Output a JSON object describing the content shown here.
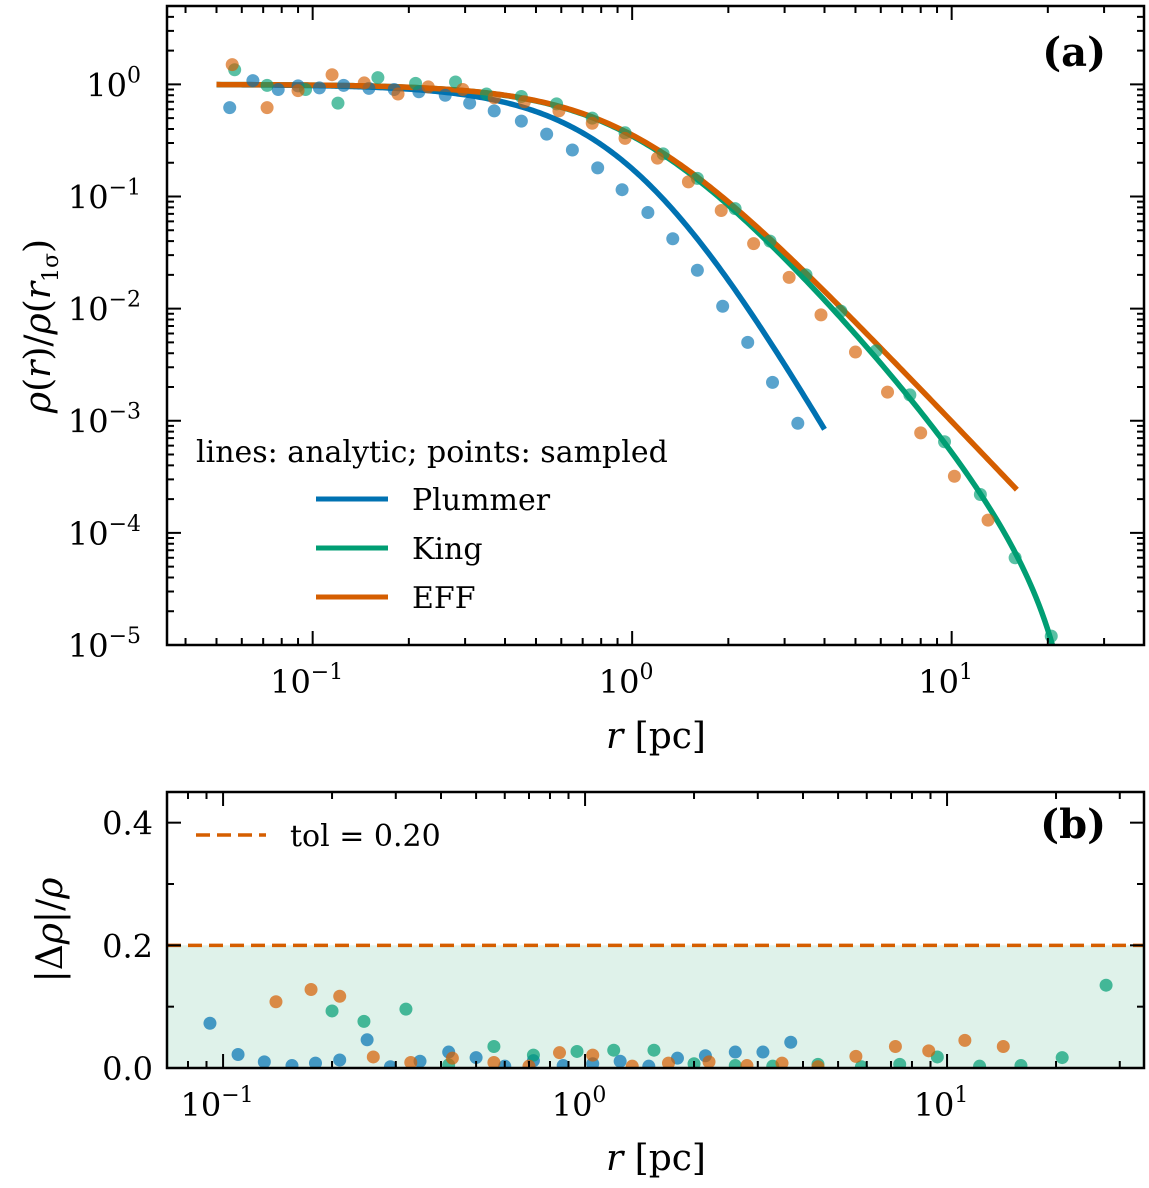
{
  "chart_data": [
    {
      "id": "a",
      "type": "line",
      "panel_tag": "(a)",
      "xscale": "log",
      "yscale": "log",
      "xlim": [
        0.035,
        40
      ],
      "ylim": [
        1e-05,
        5
      ],
      "xlabel": "r [pc]",
      "ylabel": "ρ(r)/ρ(r_1σ)",
      "xticks": [
        {
          "value": 0.1,
          "base": "10",
          "exp": "−1"
        },
        {
          "value": 1,
          "base": "10",
          "exp": "0"
        },
        {
          "value": 10,
          "base": "10",
          "exp": "1"
        }
      ],
      "yticks": [
        {
          "value": 1,
          "base": "10",
          "exp": "0"
        },
        {
          "value": 0.1,
          "base": "10",
          "exp": "−1"
        },
        {
          "value": 0.01,
          "base": "10",
          "exp": "−2"
        },
        {
          "value": 0.001,
          "base": "10",
          "exp": "−3"
        },
        {
          "value": 0.0001,
          "base": "10",
          "exp": "−4"
        },
        {
          "value": 1e-05,
          "base": "10",
          "exp": "−5"
        }
      ],
      "legend_title": "lines: analytic; points: sampled",
      "legend_position": "lower-left",
      "series": [
        {
          "name": "Plummer",
          "color": "#0072B2",
          "model": "plummer",
          "a": 1.0,
          "xmax": 4.0,
          "points_x": [
            0.055,
            0.065,
            0.078,
            0.09,
            0.105,
            0.125,
            0.15,
            0.18,
            0.215,
            0.26,
            0.31,
            0.37,
            0.45,
            0.54,
            0.65,
            0.78,
            0.93,
            1.12,
            1.34,
            1.6,
            1.92,
            2.3,
            2.75,
            3.3
          ],
          "points_y": [
            0.62,
            1.08,
            0.9,
            0.97,
            0.93,
            0.98,
            0.92,
            0.9,
            0.86,
            0.8,
            0.68,
            0.58,
            0.47,
            0.36,
            0.26,
            0.18,
            0.115,
            0.072,
            0.042,
            0.022,
            0.0105,
            0.005,
            0.0022,
            0.00095
          ]
        },
        {
          "name": "King",
          "color": "#009E73",
          "model": "king",
          "rc": 1.0,
          "rt": 25.0,
          "xmax": 23,
          "points_x": [
            0.057,
            0.072,
            0.095,
            0.12,
            0.16,
            0.21,
            0.28,
            0.35,
            0.45,
            0.58,
            0.75,
            0.95,
            1.25,
            1.6,
            2.1,
            2.7,
            3.5,
            4.5,
            5.8,
            7.4,
            9.5,
            12.3,
            15.8,
            20.5
          ],
          "points_y": [
            1.35,
            0.98,
            0.9,
            0.68,
            1.15,
            1.02,
            1.05,
            0.82,
            0.78,
            0.67,
            0.5,
            0.37,
            0.24,
            0.145,
            0.078,
            0.04,
            0.02,
            0.0095,
            0.0042,
            0.0017,
            0.00065,
            0.00022,
            6e-05,
            1.2e-05
          ]
        },
        {
          "name": "EFF",
          "color": "#D55E00",
          "model": "eff",
          "a": 1.0,
          "gamma": 3.0,
          "xmax": 16,
          "points_x": [
            0.056,
            0.072,
            0.09,
            0.115,
            0.145,
            0.185,
            0.23,
            0.295,
            0.37,
            0.46,
            0.59,
            0.75,
            0.95,
            1.2,
            1.5,
            1.9,
            2.4,
            3.1,
            3.9,
            5.0,
            6.3,
            8.0,
            10.2,
            13.0
          ],
          "points_y": [
            1.5,
            0.62,
            0.88,
            1.22,
            1.03,
            0.82,
            0.95,
            0.9,
            0.76,
            0.7,
            0.58,
            0.45,
            0.33,
            0.22,
            0.135,
            0.075,
            0.038,
            0.019,
            0.0088,
            0.0041,
            0.0018,
            0.00078,
            0.00032,
            0.00013
          ]
        }
      ]
    },
    {
      "id": "b",
      "type": "scatter",
      "panel_tag": "(b)",
      "xscale": "log",
      "yscale": "linear",
      "xlim": [
        0.07,
        35
      ],
      "ylim": [
        0,
        0.45
      ],
      "xlabel": "r [pc]",
      "ylabel": "|Δρ|/ρ",
      "xticks": [
        {
          "value": 0.1,
          "base": "10",
          "exp": "−1"
        },
        {
          "value": 1,
          "base": "10",
          "exp": "0"
        },
        {
          "value": 10,
          "base": "10",
          "exp": "1"
        }
      ],
      "yticks": [
        {
          "value": 0.0,
          "label": "0.0"
        },
        {
          "value": 0.2,
          "label": "0.2"
        },
        {
          "value": 0.4,
          "label": "0.4"
        }
      ],
      "tolerance": {
        "value": 0.2,
        "legend_label": "tol = 0.20",
        "color": "#D55E00",
        "fill": "#DFF2EA"
      },
      "legend_position": "upper-left",
      "series": [
        {
          "name": "Plummer",
          "color": "#0072B2",
          "x": [
            0.092,
            0.11,
            0.13,
            0.155,
            0.18,
            0.21,
            0.25,
            0.29,
            0.35,
            0.42,
            0.5,
            0.6,
            0.72,
            0.87,
            1.05,
            1.25,
            1.5,
            1.8,
            2.15,
            2.6,
            3.1,
            3.7
          ],
          "y": [
            0.073,
            0.022,
            0.01,
            0.004,
            0.008,
            0.013,
            0.046,
            0.002,
            0.011,
            0.026,
            0.017,
            0.003,
            0.012,
            0.004,
            0.007,
            0.011,
            0.003,
            0.016,
            0.02,
            0.026,
            0.026,
            0.042
          ]
        },
        {
          "name": "King",
          "color": "#009E73",
          "x": [
            0.2,
            0.245,
            0.32,
            0.42,
            0.56,
            0.72,
            0.95,
            1.2,
            1.55,
            2.0,
            2.6,
            3.3,
            4.4,
            5.8,
            7.4,
            9.4,
            12.3,
            16,
            20.8,
            27.5
          ],
          "y": [
            0.093,
            0.076,
            0.096,
            0.005,
            0.035,
            0.021,
            0.027,
            0.029,
            0.029,
            0.007,
            0.004,
            0.003,
            0.006,
            0.002,
            0.006,
            0.018,
            0.003,
            0.004,
            0.017,
            0.135
          ]
        },
        {
          "name": "EFF",
          "color": "#D55E00",
          "x": [
            0.14,
            0.175,
            0.21,
            0.26,
            0.33,
            0.43,
            0.56,
            0.7,
            0.85,
            1.05,
            1.35,
            1.7,
            2.2,
            2.8,
            3.5,
            4.4,
            5.6,
            7.2,
            8.9,
            11.2,
            14.3
          ],
          "y": [
            0.108,
            0.128,
            0.117,
            0.018,
            0.009,
            0.016,
            0.009,
            0.003,
            0.025,
            0.021,
            0.003,
            0.008,
            0.01,
            0.004,
            0.008,
            0.002,
            0.019,
            0.035,
            0.028,
            0.045,
            0.035
          ]
        }
      ]
    }
  ]
}
